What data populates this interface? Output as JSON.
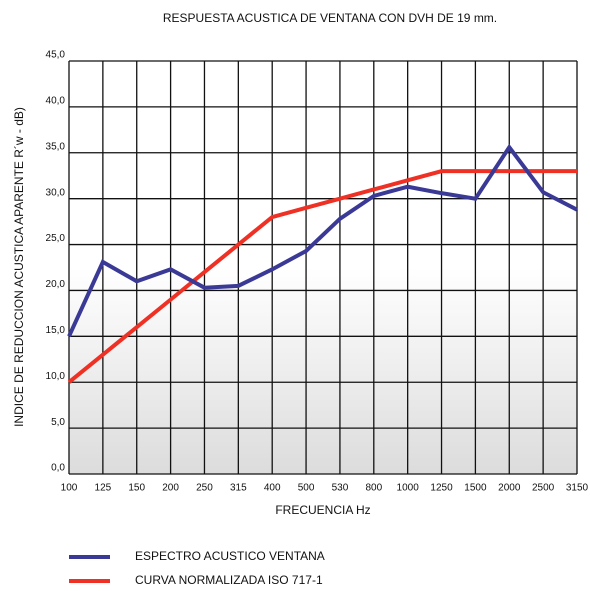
{
  "chart_data": {
    "type": "line",
    "title": "RESPUESTA ACUSTICA DE VENTANA CON DVH DE 19 mm.",
    "x_label": "FRECUENCIA Hz",
    "y_label": "INDICE DE REDUCCION ACUSTICA APARENTE  R´w -  dB)",
    "categories": [
      "100",
      "125",
      "150",
      "200",
      "250",
      "315",
      "400",
      "500",
      "530",
      "800",
      "1000",
      "1250",
      "1500",
      "2000",
      "2500",
      "3150"
    ],
    "series": [
      {
        "name": "ESPECTRO ACUSTICO VENTANA",
        "color": "#3a3a96",
        "values": [
          15,
          23.1,
          21,
          22.3,
          20.3,
          20.5,
          22.3,
          24.3,
          27.8,
          30.3,
          31.3,
          30.6,
          30,
          35.6,
          30.7,
          28.8
        ]
      },
      {
        "name": "CURVA NORMALIZADA ISO 717-1",
        "color": "#ee3124",
        "values": [
          10,
          13,
          16,
          19,
          22,
          25,
          28,
          29,
          30,
          31,
          32,
          33,
          33,
          33,
          33,
          33
        ]
      }
    ],
    "ylim": [
      0,
      45
    ],
    "yticks": [
      {
        "value": 0,
        "label": "0,0"
      },
      {
        "value": 5,
        "label": "5,0"
      },
      {
        "value": 10,
        "label": "10,0"
      },
      {
        "value": 15,
        "label": "15,0"
      },
      {
        "value": 20,
        "label": "20,0"
      },
      {
        "value": 25,
        "label": "25,0"
      },
      {
        "value": 30,
        "label": "30,0"
      },
      {
        "value": 35,
        "label": "35,0"
      },
      {
        "value": 40,
        "label": "40,0"
      },
      {
        "value": 45,
        "label": "45,0"
      }
    ],
    "grid": true
  }
}
